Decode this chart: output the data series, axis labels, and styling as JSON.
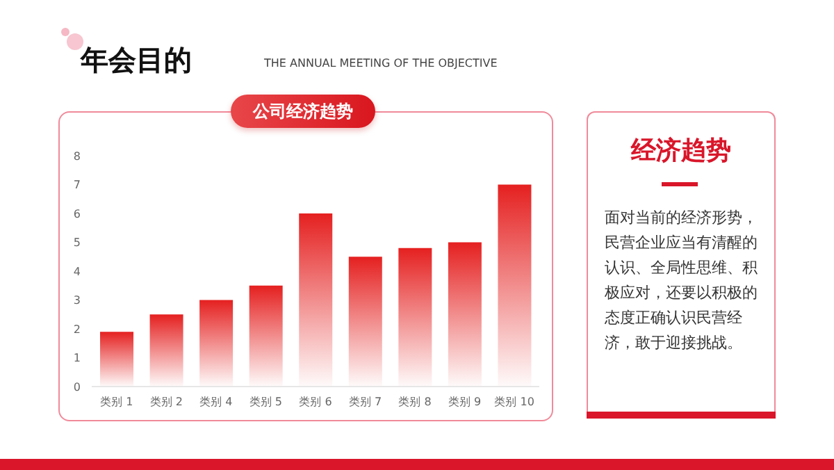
{
  "chart_data": {
    "type": "bar",
    "title": "年会目的",
    "subtitle": "THE ANNUAL MEETING OF THE OBJECTIVE",
    "xlabel": "公司经济趋势",
    "categories": [
      "类别 1",
      "类别 2",
      "类别 4",
      "类别 5",
      "类别 6",
      "类别 7",
      "类别 8",
      "类别 9",
      "类别 10"
    ],
    "values": [
      1.9,
      2.5,
      3,
      3.5,
      6,
      4.5,
      4.8,
      5,
      7
    ],
    "color": "#e52020",
    "ylim": [
      0,
      8
    ],
    "yticks": [
      0,
      1,
      2,
      3,
      4,
      5,
      6,
      7,
      8
    ],
    "grid": false,
    "legend": false,
    "annotations": [
      "经济趋势",
      "面对当前的经济形势，民营企业应当有清醒的认识、全局性思维、积极应对，还要以积极的态度正确认识民营经济，敢于迎接挑战。"
    ]
  }
}
